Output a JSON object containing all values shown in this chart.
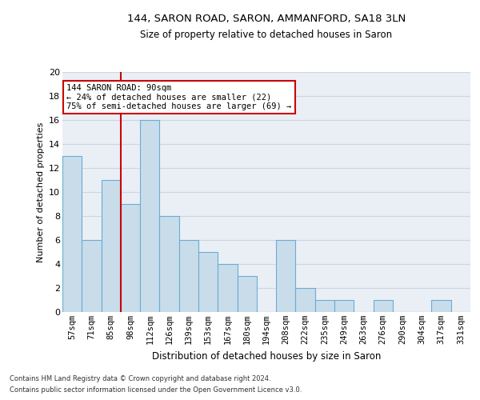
{
  "title1": "144, SARON ROAD, SARON, AMMANFORD, SA18 3LN",
  "title2": "Size of property relative to detached houses in Saron",
  "xlabel": "Distribution of detached houses by size in Saron",
  "ylabel": "Number of detached properties",
  "categories": [
    "57sqm",
    "71sqm",
    "85sqm",
    "98sqm",
    "112sqm",
    "126sqm",
    "139sqm",
    "153sqm",
    "167sqm",
    "180sqm",
    "194sqm",
    "208sqm",
    "222sqm",
    "235sqm",
    "249sqm",
    "263sqm",
    "276sqm",
    "290sqm",
    "304sqm",
    "317sqm",
    "331sqm"
  ],
  "values": [
    13,
    6,
    11,
    9,
    16,
    8,
    6,
    5,
    4,
    3,
    0,
    6,
    2,
    1,
    1,
    0,
    1,
    0,
    0,
    1,
    0
  ],
  "bar_color": "#c9dcea",
  "bar_edge_color": "#6aacd4",
  "grid_color": "#ccd5e3",
  "background_color": "#eaeff6",
  "vline_x": 2.5,
  "vline_color": "#cc0000",
  "annotation_text": "144 SARON ROAD: 90sqm\n← 24% of detached houses are smaller (22)\n75% of semi-detached houses are larger (69) →",
  "annotation_box_color": "#ffffff",
  "annotation_box_edge": "#cc0000",
  "ylim": [
    0,
    20
  ],
  "yticks": [
    0,
    2,
    4,
    6,
    8,
    10,
    12,
    14,
    16,
    18,
    20
  ],
  "footnote1": "Contains HM Land Registry data © Crown copyright and database right 2024.",
  "footnote2": "Contains public sector information licensed under the Open Government Licence v3.0."
}
